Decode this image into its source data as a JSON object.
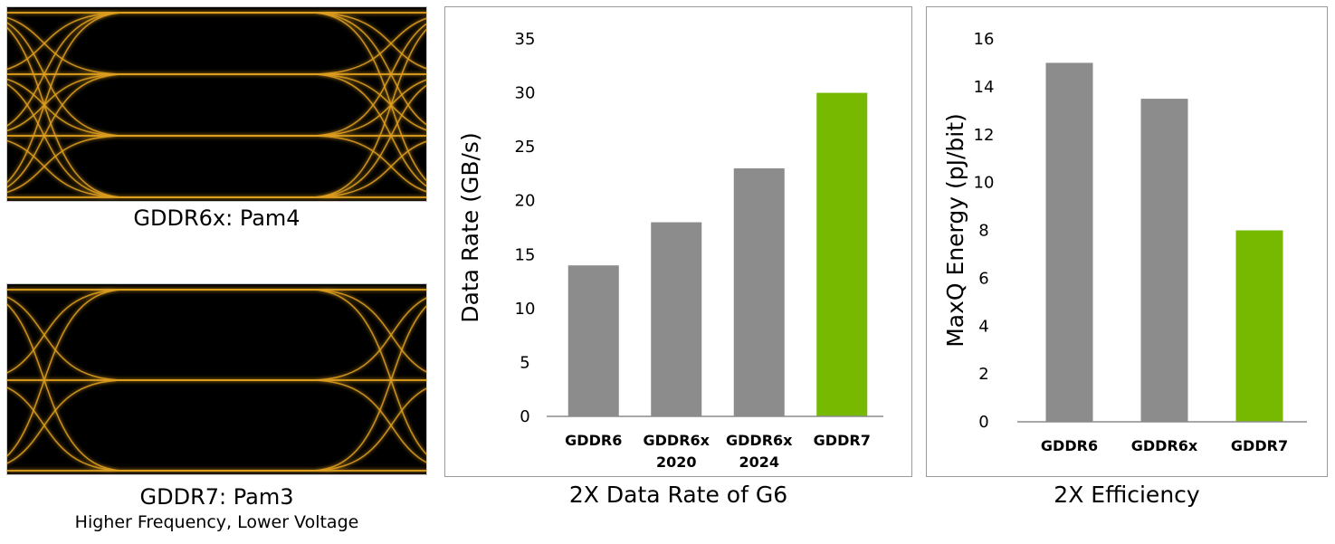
{
  "eye_diagrams": [
    {
      "caption": "GDDR6x: Pam4",
      "subcaption": "",
      "levels": 4
    },
    {
      "caption": "GDDR7: Pam3",
      "subcaption": "Higher Frequency, Lower Voltage",
      "levels": 3
    }
  ],
  "colors": {
    "eye_trace": "#e0a020",
    "eye_background": "#000000",
    "bar_gray": "#8c8c8c",
    "bar_highlight": "#76b900",
    "axis": "#8c8c8c"
  },
  "chart_data": [
    {
      "type": "bar",
      "title": "2X Data Rate of G6",
      "ylabel": "Data Rate (GB/s)",
      "xlabel": "",
      "categories": [
        "GDDR6",
        "GDDR6x 2020",
        "GDDR6x 2024",
        "GDDR7"
      ],
      "values": [
        14,
        18,
        23,
        30
      ],
      "highlight_index": 3,
      "ylim": [
        0,
        35
      ],
      "yticks": [
        0,
        5,
        10,
        15,
        20,
        25,
        30,
        35
      ],
      "grid": false
    },
    {
      "type": "bar",
      "title": "2X Efficiency",
      "ylabel": "MaxQ Energy (pJ/bit)",
      "xlabel": "",
      "categories": [
        "GDDR6",
        "GDDR6x",
        "GDDR7"
      ],
      "values": [
        15,
        13.5,
        8
      ],
      "highlight_index": 2,
      "ylim": [
        0,
        16
      ],
      "yticks": [
        0,
        2,
        4,
        6,
        8,
        10,
        12,
        14,
        16
      ],
      "grid": false
    }
  ]
}
